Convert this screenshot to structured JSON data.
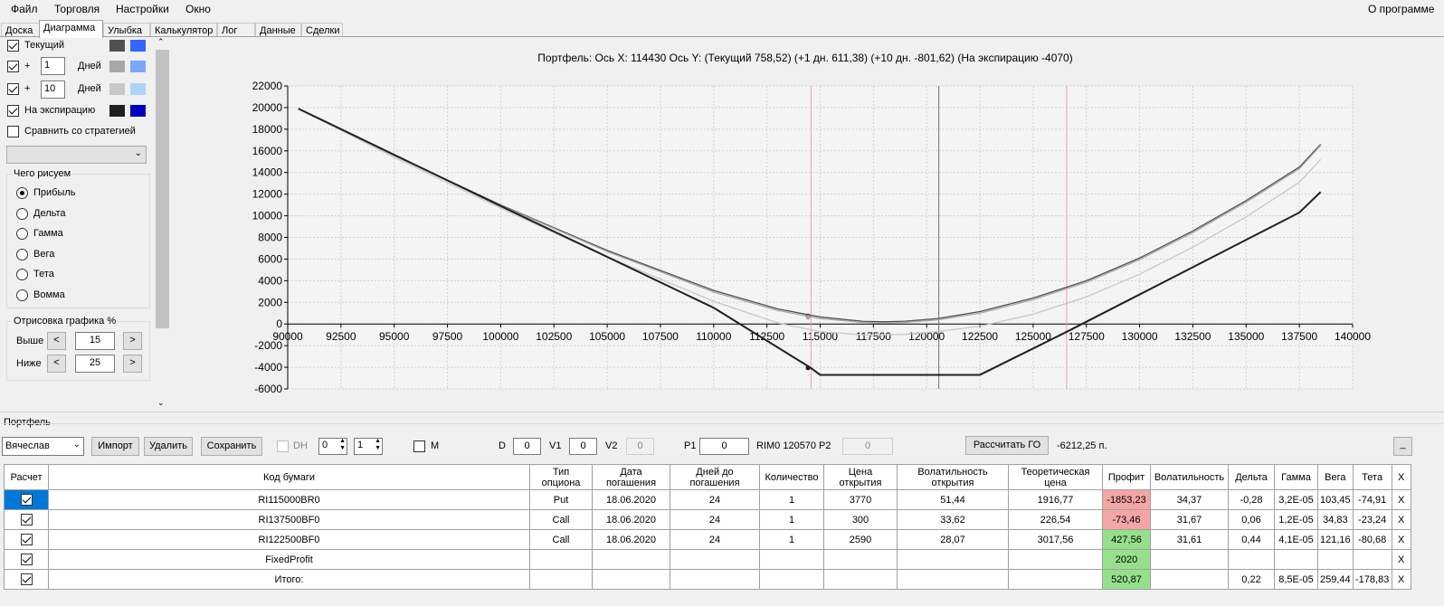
{
  "menu": {
    "file": "Файл",
    "trade": "Торговля",
    "settings": "Настройки",
    "window": "Окно",
    "about": "О программе"
  },
  "tabs": [
    "Доска",
    "Диаграмма",
    "Улыбка",
    "Калькулятор",
    "Лог",
    "Данные",
    "Сделки"
  ],
  "left": {
    "current_label": "Текущий",
    "plus": "+",
    "days_label": "Дней",
    "days1": "1",
    "days10": "10",
    "expiry_label": "На экспирацию",
    "compare_label": "Сравнить со стратегией",
    "draw_group_title": "Чего рисуем",
    "radios": [
      "Прибыль",
      "Дельта",
      "Гамма",
      "Вега",
      "Тета",
      "Вомма"
    ],
    "render_group_title": "Отрисовка графика %",
    "above_label": "Выше",
    "above_value": "15",
    "below_label": "Ниже",
    "below_value": "25",
    "swatch_colors": {
      "current": [
        "#505050",
        "#3366ff"
      ],
      "day1": [
        "#a8a8a8",
        "#7aa7ff"
      ],
      "day10": [
        "#c8c8c8",
        "#aed2ff"
      ],
      "expiry": [
        "#202020",
        "#0000c0"
      ]
    }
  },
  "chart": {
    "title": "Портфель: Ось X: 114430 Ось Y:  (Текущий 758,52)  (+1 дн. 611,38)  (+10 дн. -801,62)  (На экспирацию -4070)"
  },
  "chart_data": {
    "type": "line",
    "title": "Портфель: Ось X: 114430 Ось Y:  (Текущий 758,52)  (+1 дн. 611,38)  (+10 дн. -801,62)  (На экспирацию -4070)",
    "xlim": [
      90000,
      140000
    ],
    "ylim": [
      -6000,
      22000
    ],
    "x_ticks": [
      90000,
      92500,
      95000,
      97500,
      100000,
      102500,
      105000,
      107500,
      110000,
      112500,
      115000,
      117500,
      120000,
      122500,
      125000,
      127500,
      130000,
      132500,
      135000,
      137500,
      140000
    ],
    "y_ticks": [
      -6000,
      -4000,
      -2000,
      0,
      2000,
      4000,
      6000,
      8000,
      10000,
      12000,
      14000,
      16000,
      18000,
      20000,
      22000
    ],
    "grid": true,
    "vertical_markers": {
      "red": [
        114570,
        126570
      ],
      "gray": [
        120570
      ]
    },
    "series": [
      {
        "color": "#505050",
        "x": [
          90500,
          95000,
          100000,
          105000,
          110000,
          113000,
          115000,
          117000,
          118000,
          119000,
          120500,
          122500,
          125000,
          127500,
          130000,
          132500,
          135000,
          137500,
          138500
        ],
        "y": [
          19900,
          15600,
          11000,
          6800,
          3100,
          1400,
          650,
          250,
          200,
          260,
          500,
          1150,
          2400,
          4000,
          6100,
          8600,
          11400,
          14500,
          16600
        ]
      },
      {
        "color": "#a8a8a8",
        "x": [
          90500,
          95000,
          100000,
          105000,
          110000,
          113000,
          115000,
          117000,
          118000,
          119000,
          120500,
          122500,
          125000,
          127500,
          130000,
          132500,
          135000,
          137500,
          138500
        ],
        "y": [
          19900,
          15550,
          10950,
          6700,
          2950,
          1250,
          500,
          150,
          100,
          150,
          380,
          1000,
          2250,
          3850,
          5950,
          8450,
          11250,
          14350,
          16500
        ]
      },
      {
        "color": "#c8c8c8",
        "x": [
          90500,
          95000,
          100000,
          105000,
          110000,
          113000,
          115000,
          117000,
          118000,
          119000,
          120500,
          122500,
          125000,
          127500,
          130000,
          132500,
          135000,
          137500,
          138500
        ],
        "y": [
          19900,
          15400,
          10700,
          6200,
          2100,
          100,
          -700,
          -1000,
          -1000,
          -950,
          -700,
          -200,
          900,
          2500,
          4600,
          7100,
          9900,
          13100,
          15200
        ]
      },
      {
        "color": "#202020",
        "x": [
          90500,
          100000,
          110000,
          114570,
          115000,
          116000,
          122500,
          126570,
          130000,
          137500,
          138500
        ],
        "y": [
          19900,
          10900,
          1500,
          -4070,
          -4700,
          -4700,
          -4700,
          -730,
          2730,
          10300,
          12200
        ]
      }
    ],
    "points": [
      {
        "x": 114430,
        "y": 758.52,
        "color": "#505050"
      },
      {
        "x": 114430,
        "y": 611.38,
        "color": "#a8a8a8"
      },
      {
        "x": 114430,
        "y": -4070,
        "color": "#202020"
      }
    ]
  },
  "portfolio": {
    "label": "Портфель",
    "account": "Вячеслав",
    "import": "Импорт",
    "delete": "Удалить",
    "save": "Сохранить",
    "dh_label": "DH",
    "dh1": "0",
    "dh2": "1",
    "m_label": "M",
    "d_label": "D",
    "d_value": "0",
    "v1_label": "V1",
    "v1_value": "0",
    "v2_label": "V2",
    "v2_value": "0",
    "p1_label": "P1",
    "p1_value": "0",
    "rim_label": "RIM0 120570",
    "p2_label": "P2",
    "p2_value": "0",
    "calc_go": "Рассчитать ГО",
    "go_value": "-6212,25 п.",
    "min_btn": "_"
  },
  "table": {
    "headers": [
      "Расчет",
      "Код бумаги",
      "Тип опциона",
      "Дата погашения",
      "Дней до погашения",
      "Количество",
      "Цена открытия",
      "Волатильность открытия",
      "Теоретическая цена",
      "Профит",
      "Волатильность",
      "Дельта",
      "Гамма",
      "Вега",
      "Тета",
      "X"
    ],
    "rows": [
      [
        "RI115000BR0",
        "Put",
        "18.06.2020",
        "24",
        "1",
        "3770",
        "51,44",
        "1916,77",
        "-1853,23",
        "34,37",
        "-0,28",
        "3,2E-05",
        "103,45",
        "-74,91",
        "X"
      ],
      [
        "RI137500BF0",
        "Call",
        "18.06.2020",
        "24",
        "1",
        "300",
        "33,62",
        "226,54",
        "-73,46",
        "31,67",
        "0,06",
        "1,2E-05",
        "34,83",
        "-23,24",
        "X"
      ],
      [
        "RI122500BF0",
        "Call",
        "18.06.2020",
        "24",
        "1",
        "2590",
        "28,07",
        "3017,56",
        "427,56",
        "31,61",
        "0,44",
        "4,1E-05",
        "121,16",
        "-80,68",
        "X"
      ],
      [
        "FixedProfit",
        "",
        "",
        "",
        "",
        "",
        "",
        "",
        "2020",
        "",
        "",
        "",
        "",
        "",
        "X"
      ],
      [
        "Итого:",
        "",
        "",
        "",
        "",
        "",
        "",
        "",
        "520,87",
        "",
        "0,22",
        "8,5E-05",
        "259,44",
        "-178,83",
        "X"
      ]
    ]
  }
}
